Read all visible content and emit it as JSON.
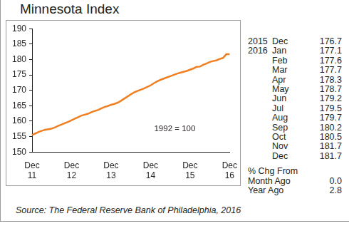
{
  "chart_data": {
    "type": "line",
    "title": "Minnesota Index",
    "categories": [
      "Dec 11",
      null,
      null,
      null,
      null,
      null,
      null,
      null,
      null,
      null,
      null,
      null,
      "Dec 12",
      null,
      null,
      null,
      null,
      null,
      null,
      null,
      null,
      null,
      null,
      null,
      "Dec 13",
      null,
      null,
      null,
      null,
      null,
      null,
      null,
      null,
      null,
      null,
      null,
      "Dec 14",
      null,
      null,
      null,
      null,
      null,
      null,
      null,
      null,
      null,
      null,
      null,
      "Dec 15",
      null,
      null,
      null,
      null,
      null,
      null,
      null,
      null,
      null,
      null,
      null,
      "Dec 16"
    ],
    "values": [
      155.5,
      156.0,
      156.5,
      156.9,
      157.2,
      157.4,
      157.6,
      158.0,
      158.5,
      158.9,
      159.4,
      159.8,
      160.3,
      160.8,
      161.3,
      161.8,
      162.1,
      162.4,
      162.9,
      163.3,
      163.6,
      164.1,
      164.6,
      164.9,
      165.3,
      165.6,
      166.0,
      166.6,
      167.3,
      168.0,
      168.7,
      169.3,
      169.8,
      170.2,
      170.6,
      171.1,
      171.6,
      172.3,
      172.9,
      173.4,
      173.8,
      174.2,
      174.6,
      175.0,
      175.4,
      175.7,
      176.0,
      176.3,
      176.7,
      177.1,
      177.6,
      177.7,
      178.3,
      178.7,
      179.2,
      179.5,
      179.7,
      180.2,
      180.5,
      181.7,
      181.7
    ],
    "color": "#f07f22",
    "ylim": [
      150,
      190
    ],
    "yticks": [
      150,
      155,
      160,
      165,
      170,
      175,
      180,
      185,
      190
    ],
    "grid": false,
    "annotation": "1992 = 100"
  },
  "summary": {
    "rows": [
      [
        "2015",
        "Dec",
        "176.7"
      ],
      [
        "2016",
        "Jan",
        "177.1"
      ],
      [
        "",
        "Feb",
        "177.6"
      ],
      [
        "",
        "Mar",
        "177.7"
      ],
      [
        "",
        "Apr",
        "178.3"
      ],
      [
        "",
        "May",
        "178.7"
      ],
      [
        "",
        "Jun",
        "179.2"
      ],
      [
        "",
        "Jul",
        "179.5"
      ],
      [
        "",
        "Aug",
        "179.7"
      ],
      [
        "",
        "Sep",
        "180.2"
      ],
      [
        "",
        "Oct",
        "180.5"
      ],
      [
        "",
        "Nov",
        "181.7"
      ],
      [
        "",
        "Dec",
        "181.7"
      ]
    ],
    "change_heading": "% Chg From",
    "changes": [
      [
        "Month Ago",
        "0.0"
      ],
      [
        "Year Ago",
        "2.8"
      ]
    ]
  },
  "source": "Source:  The Federal Reserve Bank of Philadelphia, 2016"
}
